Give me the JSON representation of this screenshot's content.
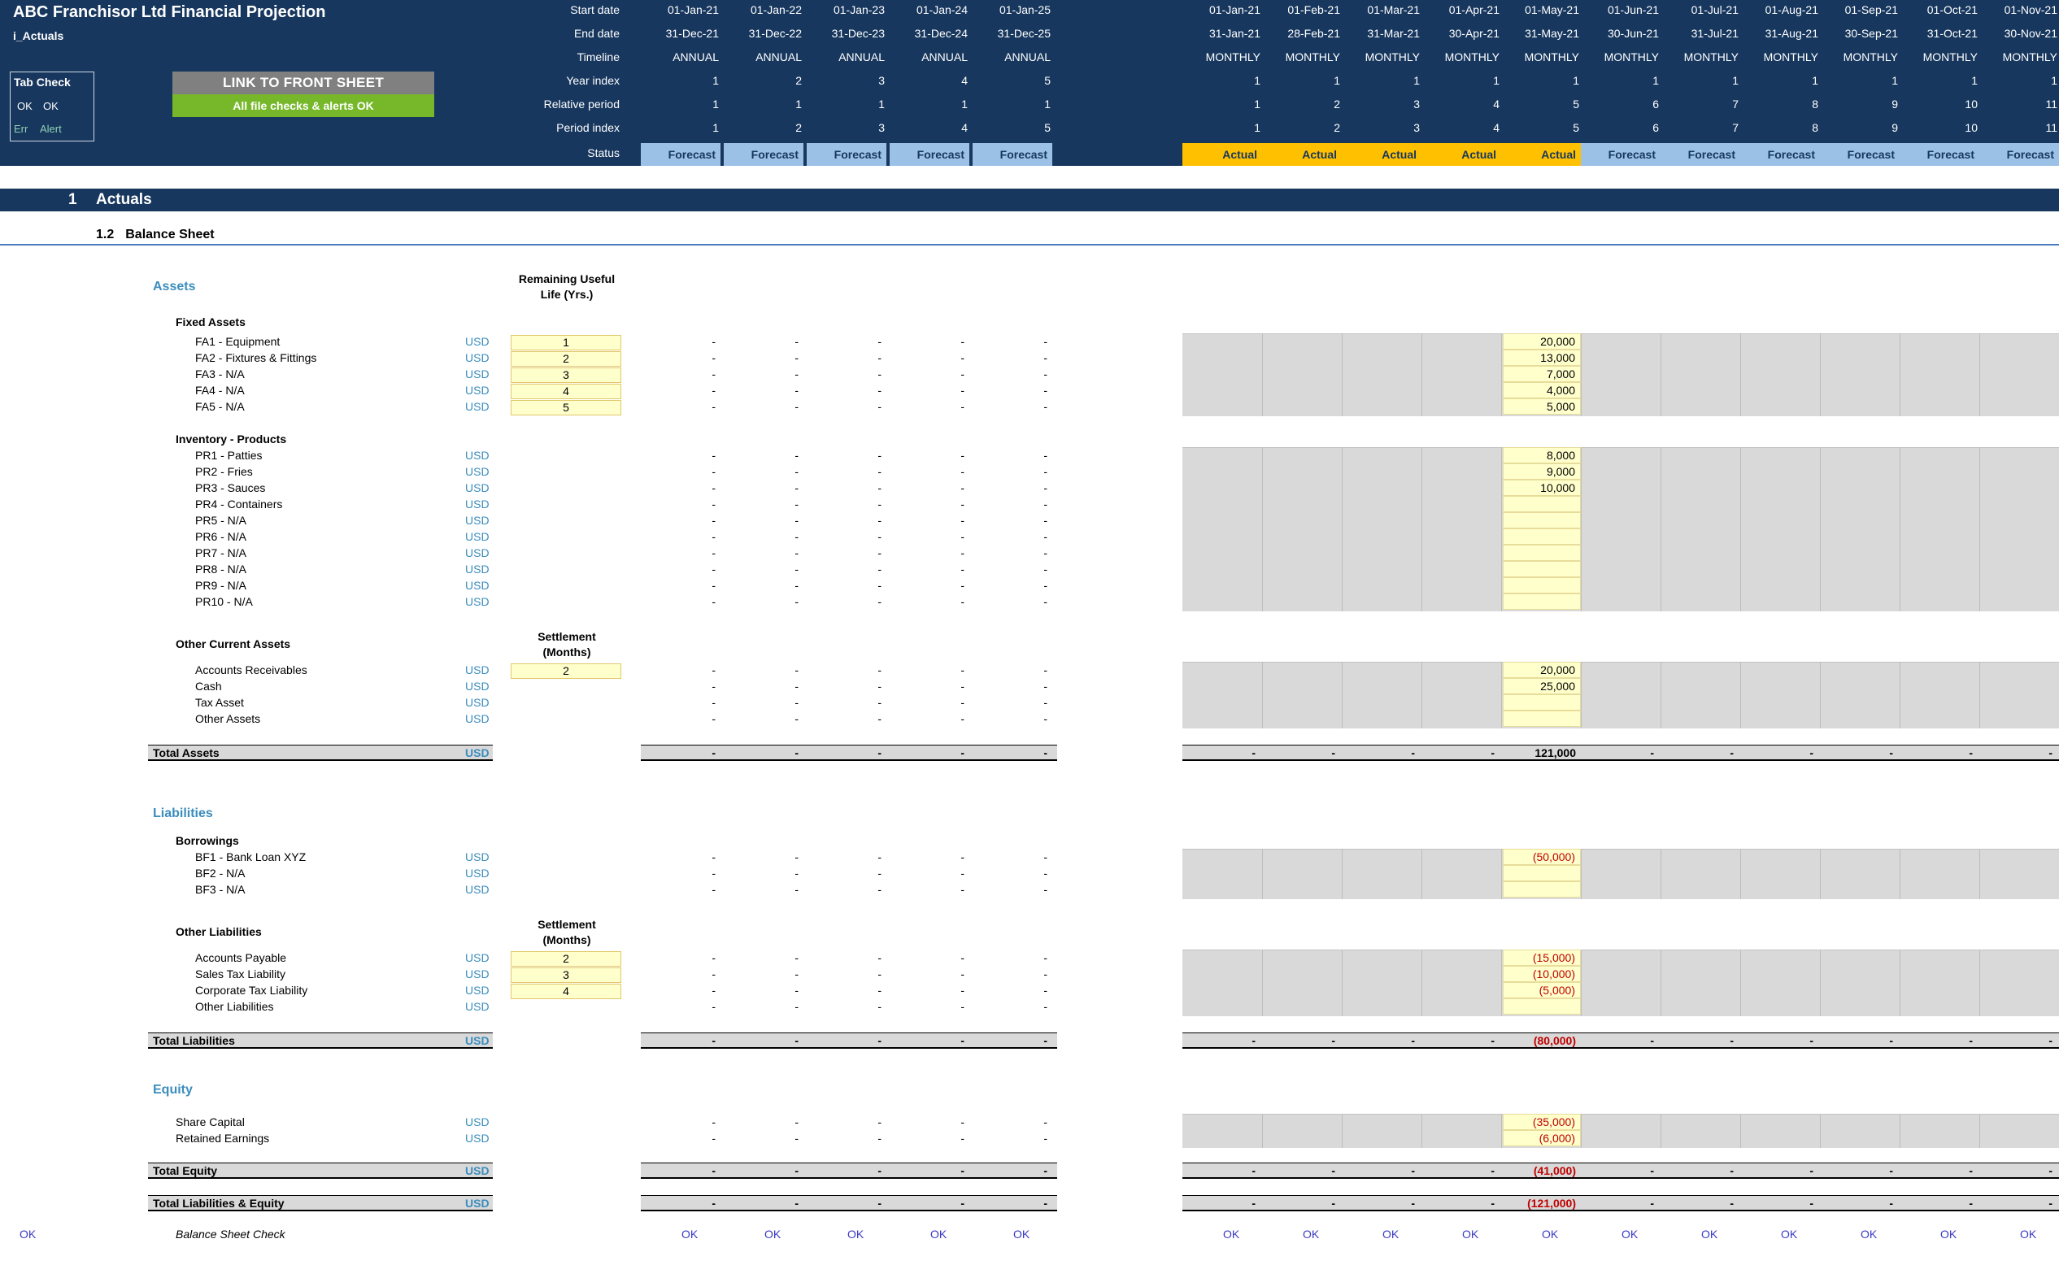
{
  "app": {
    "title": "ABC Franchisor Ltd Financial Projection",
    "sheet": "i_Actuals"
  },
  "tab_check": {
    "title": "Tab Check",
    "ok1": "OK",
    "ok2": "OK",
    "err": "Err",
    "alert": "Alert"
  },
  "link_button": "LINK TO FRONT SHEET",
  "checks_message": "All file checks & alerts OK",
  "header_rows": {
    "start_date": "Start date",
    "end_date": "End date",
    "timeline": "Timeline",
    "year_index": "Year index",
    "relative_period": "Relative period",
    "period_index": "Period index",
    "status": "Status"
  },
  "annual_columns": [
    {
      "start": "01-Jan-21",
      "end": "31-Dec-21",
      "timeline": "ANNUAL",
      "year": "1",
      "relative": "1",
      "period": "1",
      "status": "Forecast"
    },
    {
      "start": "01-Jan-22",
      "end": "31-Dec-22",
      "timeline": "ANNUAL",
      "year": "2",
      "relative": "1",
      "period": "2",
      "status": "Forecast"
    },
    {
      "start": "01-Jan-23",
      "end": "31-Dec-23",
      "timeline": "ANNUAL",
      "year": "3",
      "relative": "1",
      "period": "3",
      "status": "Forecast"
    },
    {
      "start": "01-Jan-24",
      "end": "31-Dec-24",
      "timeline": "ANNUAL",
      "year": "4",
      "relative": "1",
      "period": "4",
      "status": "Forecast"
    },
    {
      "start": "01-Jan-25",
      "end": "31-Dec-25",
      "timeline": "ANNUAL",
      "year": "5",
      "relative": "1",
      "period": "5",
      "status": "Forecast"
    }
  ],
  "monthly_columns": [
    {
      "start": "01-Jan-21",
      "end": "31-Jan-21",
      "timeline": "MONTHLY",
      "year": "1",
      "relative": "1",
      "period": "1",
      "status": "Actual"
    },
    {
      "start": "01-Feb-21",
      "end": "28-Feb-21",
      "timeline": "MONTHLY",
      "year": "1",
      "relative": "2",
      "period": "2",
      "status": "Actual"
    },
    {
      "start": "01-Mar-21",
      "end": "31-Mar-21",
      "timeline": "MONTHLY",
      "year": "1",
      "relative": "3",
      "period": "3",
      "status": "Actual"
    },
    {
      "start": "01-Apr-21",
      "end": "30-Apr-21",
      "timeline": "MONTHLY",
      "year": "1",
      "relative": "4",
      "period": "4",
      "status": "Actual"
    },
    {
      "start": "01-May-21",
      "end": "31-May-21",
      "timeline": "MONTHLY",
      "year": "1",
      "relative": "5",
      "period": "5",
      "status": "Actual"
    },
    {
      "start": "01-Jun-21",
      "end": "30-Jun-21",
      "timeline": "MONTHLY",
      "year": "1",
      "relative": "6",
      "period": "6",
      "status": "Forecast"
    },
    {
      "start": "01-Jul-21",
      "end": "31-Jul-21",
      "timeline": "MONTHLY",
      "year": "1",
      "relative": "7",
      "period": "7",
      "status": "Forecast"
    },
    {
      "start": "01-Aug-21",
      "end": "31-Aug-21",
      "timeline": "MONTHLY",
      "year": "1",
      "relative": "8",
      "period": "8",
      "status": "Forecast"
    },
    {
      "start": "01-Sep-21",
      "end": "30-Sep-21",
      "timeline": "MONTHLY",
      "year": "1",
      "relative": "9",
      "period": "9",
      "status": "Forecast"
    },
    {
      "start": "01-Oct-21",
      "end": "31-Oct-21",
      "timeline": "MONTHLY",
      "year": "1",
      "relative": "10",
      "period": "10",
      "status": "Forecast"
    },
    {
      "start": "01-Nov-21",
      "end": "30-Nov-21",
      "timeline": "MONTHLY",
      "year": "1",
      "relative": "11",
      "period": "11",
      "status": "Forecast"
    }
  ],
  "section": {
    "number": "1",
    "title": "Actuals"
  },
  "subsection": {
    "number": "1.2",
    "title": "Balance Sheet"
  },
  "labels": {
    "assets": "Assets",
    "fixed_assets": "Fixed Assets",
    "inventory": "Inventory - Products",
    "other_current_assets": "Other Current Assets",
    "total_assets": "Total Assets",
    "liabilities": "Liabilities",
    "borrowings": "Borrowings",
    "other_liabilities": "Other Liabilities",
    "total_liabilities": "Total Liabilities",
    "equity": "Equity",
    "total_equity": "Total Equity",
    "total_liab_equity": "Total Liabilities & Equity",
    "balance_check": "Balance Sheet Check",
    "remaining_life_1": "Remaining Useful",
    "remaining_life_2": "Life (Yrs.)",
    "settlement_1": "Settlement",
    "settlement_2": "(Months)",
    "unit": "USD",
    "dash": "-",
    "ok": "OK"
  },
  "fixed_assets": [
    {
      "label": "FA1 - Equipment",
      "life": "1",
      "may": "20,000"
    },
    {
      "label": "FA2 - Fixtures & Fittings",
      "life": "2",
      "may": "13,000"
    },
    {
      "label": "FA3 - N/A",
      "life": "3",
      "may": "7,000"
    },
    {
      "label": "FA4 - N/A",
      "life": "4",
      "may": "4,000"
    },
    {
      "label": "FA5 - N/A",
      "life": "5",
      "may": "5,000"
    }
  ],
  "inventory": [
    {
      "label": "PR1 - Patties",
      "may": "8,000"
    },
    {
      "label": "PR2 - Fries",
      "may": "9,000"
    },
    {
      "label": "PR3 - Sauces",
      "may": "10,000"
    },
    {
      "label": "PR4 - Containers",
      "may": ""
    },
    {
      "label": "PR5 - N/A",
      "may": ""
    },
    {
      "label": "PR6 - N/A",
      "may": ""
    },
    {
      "label": "PR7 - N/A",
      "may": ""
    },
    {
      "label": "PR8 - N/A",
      "may": ""
    },
    {
      "label": "PR9 - N/A",
      "may": ""
    },
    {
      "label": "PR10 - N/A",
      "may": ""
    }
  ],
  "other_current_assets": [
    {
      "label": "Accounts Receivables",
      "settle": "2",
      "may": "20,000"
    },
    {
      "label": "Cash",
      "settle": "",
      "may": "25,000"
    },
    {
      "label": "Tax Asset",
      "settle": "",
      "may": ""
    },
    {
      "label": "Other Assets",
      "settle": "",
      "may": ""
    }
  ],
  "borrowings": [
    {
      "label": "BF1 - Bank Loan XYZ",
      "may": "(50,000)"
    },
    {
      "label": "BF2 - N/A",
      "may": ""
    },
    {
      "label": "BF3 - N/A",
      "may": ""
    }
  ],
  "other_liabilities": [
    {
      "label": "Accounts Payable",
      "settle": "2",
      "may": "(15,000)"
    },
    {
      "label": "Sales Tax Liability",
      "settle": "3",
      "may": "(10,000)"
    },
    {
      "label": "Corporate Tax Liability",
      "settle": "4",
      "may": "(5,000)"
    },
    {
      "label": "Other Liabilities",
      "settle": "",
      "may": ""
    }
  ],
  "equity_rows": [
    {
      "label": "Share Capital",
      "may": "(35,000)"
    },
    {
      "label": "Retained Earnings",
      "may": "(6,000)"
    }
  ],
  "totals": {
    "assets": "121,000",
    "liabilities": "(80,000)",
    "equity": "(41,000)",
    "liab_equity": "(121,000)"
  },
  "colors": {
    "header": "#17375e",
    "forecast": "#9bc2e6",
    "actual": "#ffc000",
    "input": "#ffffcc",
    "accent": "#3b8dbd",
    "ok_green": "#76b82a"
  }
}
